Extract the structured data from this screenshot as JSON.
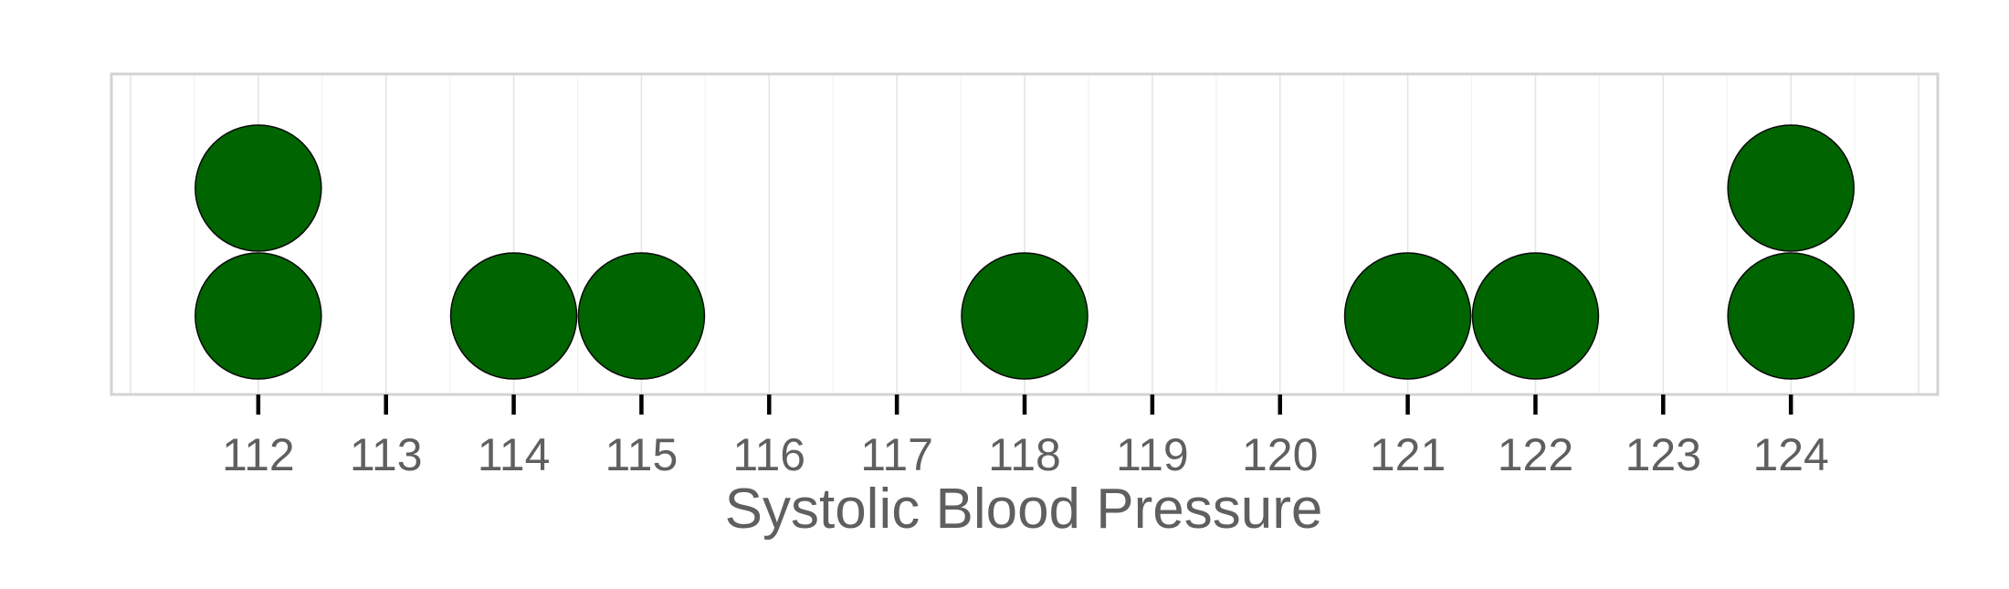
{
  "chart_data": {
    "type": "scatter",
    "subtype": "dot-plot",
    "title": "",
    "xlabel": "Systolic Blood Pressure",
    "ylabel": "",
    "xlim": [
      110.85,
      125.15
    ],
    "x_ticks": [
      112,
      113,
      114,
      115,
      116,
      117,
      118,
      119,
      120,
      121,
      122,
      123,
      124
    ],
    "x_tick_labels": [
      "112",
      "113",
      "114",
      "115",
      "116",
      "117",
      "118",
      "119",
      "120",
      "121",
      "122",
      "123",
      "124"
    ],
    "grid": true,
    "legend": "none",
    "series": [
      {
        "values": [
          112,
          112,
          114,
          115,
          118,
          121,
          122,
          124,
          124
        ]
      }
    ],
    "colors": {
      "dot": "#006400",
      "panel_border": "#d3d3d3",
      "grid_major": "#e5e5e5",
      "grid_minor": "#f3f3f3",
      "tick": "#000000",
      "text": "#5f5f5f",
      "background": "#ffffff"
    }
  }
}
